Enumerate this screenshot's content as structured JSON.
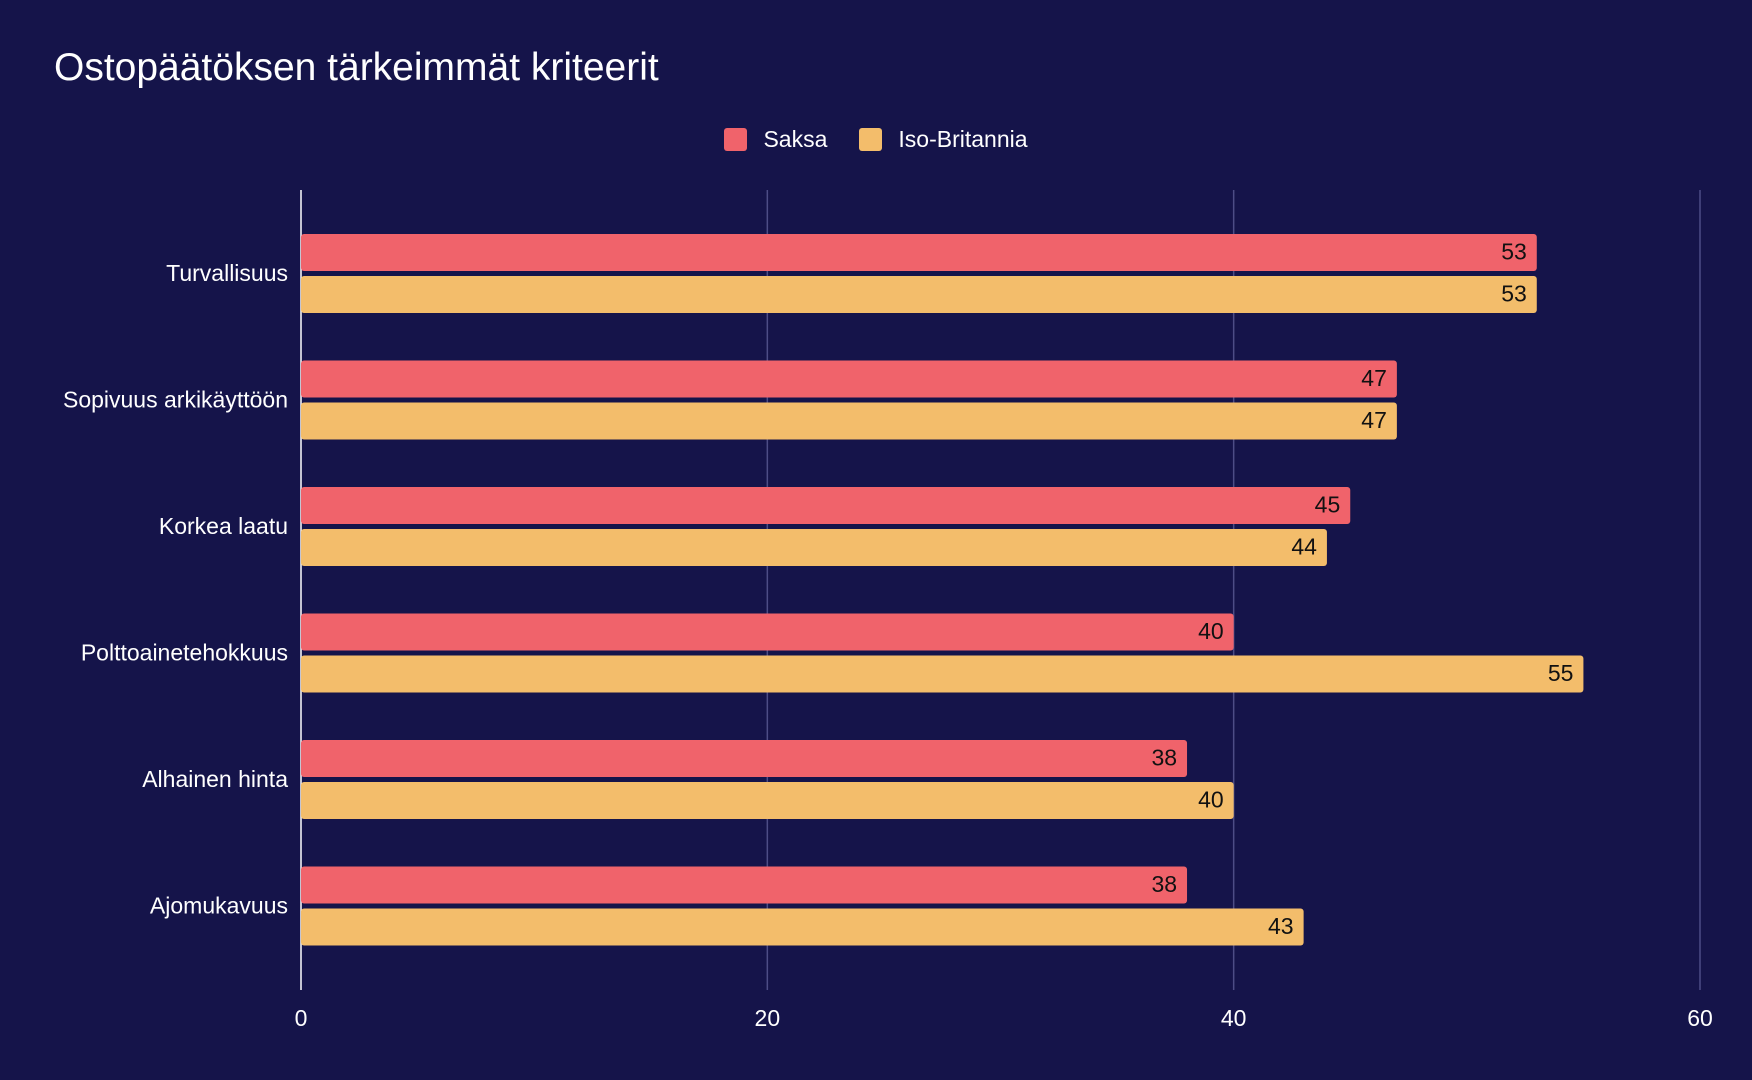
{
  "chart_data": {
    "type": "bar",
    "orientation": "horizontal",
    "title": "Ostopäätöksen tärkeimmät kriteerit",
    "categories": [
      "Turvallisuus",
      "Sopivuus arkikäyttöön",
      "Korkea laatu",
      "Polttoainetehokkuus",
      "Alhainen hinta",
      "Ajomukavuus"
    ],
    "series": [
      {
        "name": "Saksa",
        "color": "#f0636b",
        "values": [
          53,
          47,
          45,
          40,
          38,
          38
        ]
      },
      {
        "name": "Iso-Britannia",
        "color": "#f3bd6b",
        "values": [
          53,
          47,
          44,
          55,
          40,
          43
        ]
      }
    ],
    "xlim": [
      0,
      60
    ],
    "xticks": [
      "0",
      "20",
      "40",
      "60"
    ],
    "xlabel": "",
    "ylabel": "",
    "grid": true,
    "legend": "top-center",
    "data_labels": true
  }
}
